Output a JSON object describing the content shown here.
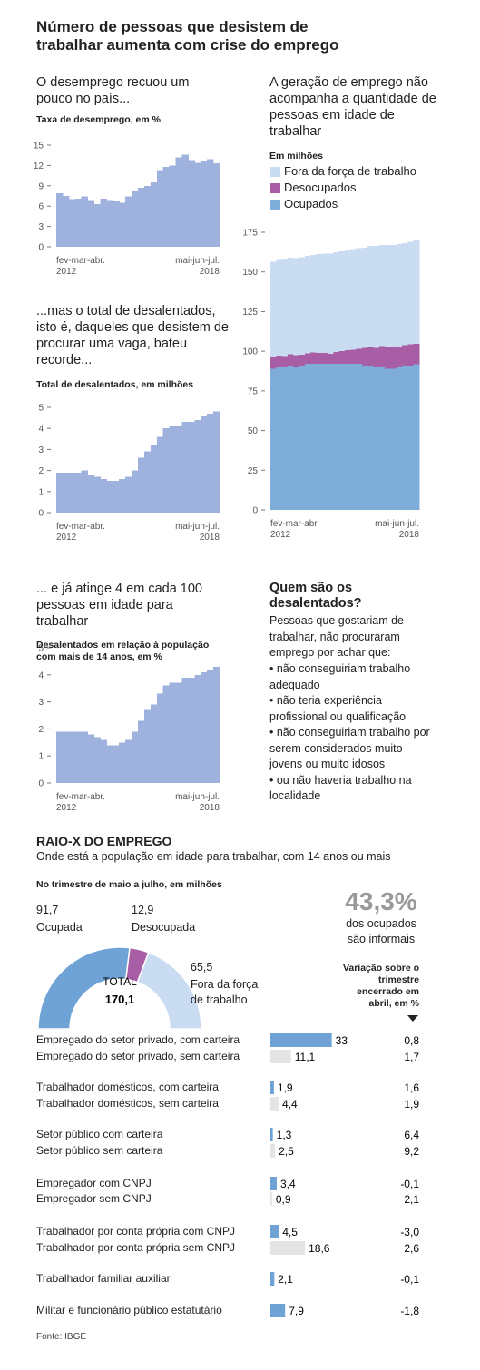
{
  "title": "Número de pessoas que desistem de trabalhar aumenta com crise do emprego",
  "chart_data": [
    {
      "type": "area-steps",
      "title": "O desemprego recuou um pouco no país...",
      "subtitle": "Taxa de desemprego, em %",
      "color": "#9fb2de",
      "categories": [
        "fev-mar-abr.\n2012",
        null,
        null,
        null,
        null,
        null,
        null,
        null,
        null,
        null,
        null,
        null,
        null,
        null,
        null,
        null,
        null,
        null,
        null,
        null,
        null,
        null,
        null,
        null,
        null,
        "mai-jun-jul.\n2018"
      ],
      "values": [
        7.9,
        7.5,
        7.0,
        7.1,
        7.4,
        6.9,
        6.3,
        7.1,
        6.9,
        6.8,
        6.5,
        7.4,
        8.3,
        8.7,
        9.0,
        9.5,
        11.3,
        11.8,
        12.0,
        13.2,
        13.6,
        12.8,
        12.4,
        12.6,
        12.9,
        12.3
      ],
      "ylim": [
        0,
        15
      ],
      "yticks": [
        0,
        3,
        6,
        9,
        12,
        15
      ]
    },
    {
      "type": "area-steps",
      "title": "...mas o total de desalentados, isto é, daqueles que desistem de procurar uma vaga, bateu recorde...",
      "subtitle": "Total de desalentados, em milhões",
      "color": "#9fb2de",
      "categories": [
        "fev-mar-abr.\n2012",
        null,
        null,
        null,
        null,
        null,
        null,
        null,
        null,
        null,
        null,
        null,
        null,
        null,
        null,
        null,
        null,
        null,
        null,
        null,
        null,
        null,
        null,
        null,
        null,
        "mai-jun-jul.\n2018"
      ],
      "values": [
        1.9,
        1.9,
        1.9,
        1.9,
        2.0,
        1.8,
        1.7,
        1.6,
        1.5,
        1.5,
        1.6,
        1.7,
        2.0,
        2.6,
        2.9,
        3.2,
        3.6,
        4.0,
        4.1,
        4.1,
        4.3,
        4.3,
        4.4,
        4.6,
        4.7,
        4.8
      ],
      "ylim": [
        0,
        5
      ],
      "yticks": [
        0,
        1,
        2,
        3,
        4,
        5
      ]
    },
    {
      "type": "area-steps",
      "title": "... e já atinge 4 em cada 100 pessoas em idade para trabalhar",
      "subtitle": "Desalentados em relação à população com mais de 14 anos, em %",
      "color": "#9fb2de",
      "categories": [
        "fev-mar-abr.\n2012",
        null,
        null,
        null,
        null,
        null,
        null,
        null,
        null,
        null,
        null,
        null,
        null,
        null,
        null,
        null,
        null,
        null,
        null,
        null,
        null,
        null,
        null,
        null,
        null,
        "mai-jun-jul.\n2018"
      ],
      "values": [
        1.9,
        1.9,
        1.9,
        1.9,
        1.9,
        1.8,
        1.7,
        1.6,
        1.4,
        1.4,
        1.5,
        1.6,
        1.9,
        2.3,
        2.7,
        2.9,
        3.3,
        3.6,
        3.7,
        3.7,
        3.9,
        3.9,
        4.0,
        4.1,
        4.2,
        4.3
      ],
      "ylim": [
        0,
        5
      ],
      "yticks": [
        0,
        1,
        2,
        3,
        4,
        5
      ]
    },
    {
      "type": "stacked-steps",
      "title": "A geração de emprego não acompanha a quantidade de pessoas em idade de trabalhar",
      "subtitle": "Em milhões",
      "categories": [
        "fev-mar-abr.\n2012",
        null,
        null,
        null,
        null,
        null,
        null,
        null,
        null,
        null,
        null,
        null,
        null,
        null,
        null,
        null,
        null,
        null,
        null,
        null,
        null,
        null,
        null,
        null,
        null,
        "mai-jun-jul.\n2018"
      ],
      "series": [
        {
          "name": "Fora da força de trabalho",
          "color": "#c9dcf1",
          "values": [
            59.9,
            60.2,
            60.8,
            61.0,
            61.4,
            61.6,
            61.6,
            61.7,
            62.4,
            62.7,
            63.2,
            63.1,
            62.9,
            63.0,
            63.3,
            63.4,
            63.3,
            63.5,
            64.3,
            63.9,
            64.0,
            64.8,
            64.8,
            64.4,
            64.5,
            65.5
          ]
        },
        {
          "name": "Desocupados",
          "color": "#a85ea5",
          "values": [
            7.6,
            7.3,
            7.0,
            7.0,
            7.4,
            6.8,
            6.6,
            7.1,
            6.8,
            6.8,
            6.5,
            7.4,
            8.0,
            8.6,
            9.0,
            9.5,
            11.1,
            11.8,
            12.0,
            13.2,
            14.0,
            13.3,
            12.7,
            12.8,
            13.5,
            12.9
          ]
        },
        {
          "name": "Ocupados",
          "color": "#7fadd9",
          "values": [
            89,
            90,
            90,
            91,
            90,
            91,
            92,
            92,
            92,
            92,
            92,
            92,
            92,
            92,
            92,
            92,
            91,
            91,
            90,
            90,
            89,
            89,
            90,
            91,
            91,
            91.7
          ]
        }
      ],
      "ylim": [
        0,
        175
      ],
      "yticks": [
        0,
        25,
        50,
        75,
        100,
        125,
        150,
        175
      ]
    },
    {
      "type": "half-donut",
      "subtitle": "No trimestre de maio a julho, em milhões",
      "categories": [
        "Ocupada",
        "Desocupada",
        "Fora da força de trabalho"
      ],
      "values": [
        91.7,
        12.9,
        65.5
      ],
      "value_labels": [
        "91,7",
        "12,9",
        "65,5"
      ],
      "colors": [
        "#6fa3d6",
        "#a85ea5",
        "#c9dcf1"
      ],
      "center_label": "TOTAL",
      "center_value": 170.1,
      "center_value_label": "170,1"
    },
    {
      "type": "hbar",
      "categories": [
        "Empregado do setor privado, com carteira",
        "Empregado do setor privado, sem carteira",
        "Trabalhador domésticos, com carteira",
        "Trabalhador domésticos, sem carteira",
        "Setor público com carteira",
        "Setor público sem carteira",
        "Empregador com CNPJ",
        "Empregador sem CNPJ",
        "Trabalhador por conta própria com CNPJ",
        "Trabalhador por conta própria sem CNPJ",
        "Trabalhador familiar auxiliar",
        "Militar e funcionário público estatutário"
      ],
      "values": [
        33,
        11.1,
        1.9,
        4.4,
        1.3,
        2.5,
        3.4,
        0.9,
        4.5,
        18.6,
        2.1,
        7.9
      ],
      "value_labels": [
        "33",
        "11,1",
        "1,9",
        "4,4",
        "1,3",
        "2,5",
        "3,4",
        "0,9",
        "4,5",
        "18,6",
        "2,1",
        "7,9"
      ],
      "colors": [
        "#6fa3d6",
        "#e4e4e4",
        "#6fa3d6",
        "#e4e4e4",
        "#6fa3d6",
        "#e4e4e4",
        "#6fa3d6",
        "#e4e4e4",
        "#6fa3d6",
        "#e4e4e4",
        "#6fa3d6",
        "#6fa3d6"
      ],
      "xlim": [
        0,
        40
      ],
      "variation_title": "Variação sobre o trimestre encerrado em abril, em %",
      "variation_labels": [
        "0,8",
        "1,7",
        "1,6",
        "1,9",
        "6,4",
        "9,2",
        "-0,1",
        "2,1",
        "-3,0",
        "2,6",
        "-0,1",
        "-1,8"
      ]
    }
  ],
  "info": {
    "title": "Quem são os desalentados?",
    "intro": "Pessoas que gostariam de trabalhar, não procuraram emprego por achar que:",
    "items": [
      "• não conseguiriam trabalho adequado",
      "• não teria experiência profissional ou qualificação",
      "• não conseguiriam trabalho por serem considerados muito jovens ou muito idosos",
      "• ou não haveria trabalho na localidade"
    ]
  },
  "raio_x": {
    "title": "RAIO-X DO EMPREGO",
    "subtitle": "Onde está a população em idade para trabalhar, com 14 anos ou mais"
  },
  "informal": {
    "value": "43,3%",
    "text": "dos ocupados são informais"
  },
  "source": "Fonte: IBGE"
}
